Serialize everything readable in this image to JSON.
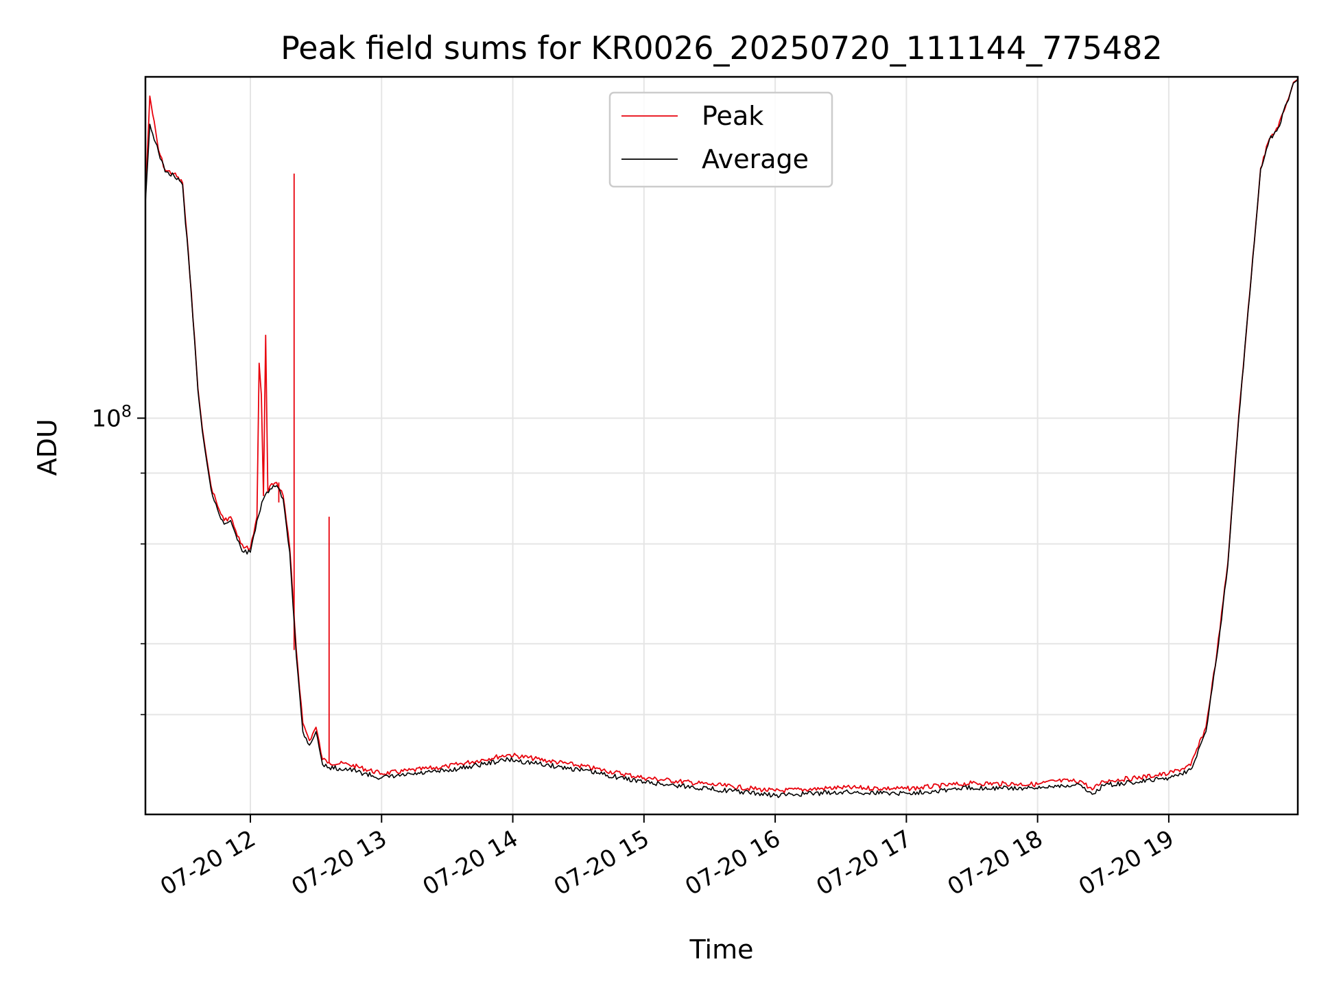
{
  "chart_data": {
    "type": "line",
    "title": "Peak field sums for KR0026_20250720_111144_775482",
    "xlabel": "Time",
    "ylabel": "ADU",
    "yscale": "log",
    "ylim": [
      20000000,
      400000000
    ],
    "xlim": [
      "2025-07-20 11:12",
      "2025-07-20 19:59"
    ],
    "x_tick_labels": [
      "07-20 12",
      "07-20 13",
      "07-20 14",
      "07-20 15",
      "07-20 16",
      "07-20 17",
      "07-20 18",
      "07-20 19"
    ],
    "x_ticks": [
      "2025-07-20 12:00",
      "2025-07-20 13:00",
      "2025-07-20 14:00",
      "2025-07-20 15:00",
      "2025-07-20 16:00",
      "2025-07-20 17:00",
      "2025-07-20 18:00",
      "2025-07-20 19:00"
    ],
    "y_tick_labels": [
      "10^8"
    ],
    "y_ticks": [
      100000000
    ],
    "y_minor_ticks": [
      30000000,
      40000000,
      60000000,
      80000000
    ],
    "grid": true,
    "legend_position": "top-center",
    "colors": {
      "peak": "#e8000b",
      "average": "#000000",
      "grid": "#e5e5e5"
    },
    "series": [
      {
        "name": "Average",
        "x": [
          "2025-07-20 11:12",
          "2025-07-20 11:14",
          "2025-07-20 11:18",
          "2025-07-20 11:21",
          "2025-07-20 11:25",
          "2025-07-20 11:29",
          "2025-07-20 11:33",
          "2025-07-20 11:36",
          "2025-07-20 11:38",
          "2025-07-20 11:40",
          "2025-07-20 11:42",
          "2025-07-20 11:45",
          "2025-07-20 11:48",
          "2025-07-20 11:51",
          "2025-07-20 11:54",
          "2025-07-20 11:57",
          "2025-07-20 12:00",
          "2025-07-20 12:03",
          "2025-07-20 12:06",
          "2025-07-20 12:09",
          "2025-07-20 12:12",
          "2025-07-20 12:15",
          "2025-07-20 12:18",
          "2025-07-20 12:21",
          "2025-07-20 12:24",
          "2025-07-20 12:27",
          "2025-07-20 12:30",
          "2025-07-20 12:33",
          "2025-07-20 12:36",
          "2025-07-20 12:45",
          "2025-07-20 13:00",
          "2025-07-20 13:30",
          "2025-07-20 13:58",
          "2025-07-20 14:30",
          "2025-07-20 15:00",
          "2025-07-20 15:30",
          "2025-07-20 16:00",
          "2025-07-20 16:30",
          "2025-07-20 17:00",
          "2025-07-20 17:30",
          "2025-07-20 18:00",
          "2025-07-20 18:08",
          "2025-07-20 18:20",
          "2025-07-20 18:25",
          "2025-07-20 18:30",
          "2025-07-20 18:45",
          "2025-07-20 19:00",
          "2025-07-20 19:10",
          "2025-07-20 19:17",
          "2025-07-20 19:22",
          "2025-07-20 19:27",
          "2025-07-20 19:32",
          "2025-07-20 19:37",
          "2025-07-20 19:42",
          "2025-07-20 19:46",
          "2025-07-20 19:50",
          "2025-07-20 19:54",
          "2025-07-20 19:57",
          "2025-07-20 19:59"
        ],
        "y": [
          240000000,
          330000000,
          295000000,
          272000000,
          268000000,
          258000000,
          165000000,
          112000000,
          95000000,
          84000000,
          75000000,
          69000000,
          65000000,
          66000000,
          61000000,
          58000000,
          58000000,
          66000000,
          72000000,
          75000000,
          76000000,
          72000000,
          58000000,
          38000000,
          28000000,
          26500000,
          28000000,
          24500000,
          24200000,
          24000000,
          23200000,
          23900000,
          25000000,
          24000000,
          22800000,
          22200000,
          21600000,
          21900000,
          21800000,
          22300000,
          22200000,
          22500000,
          22500000,
          21700000,
          22500000,
          22800000,
          23200000,
          24000000,
          28000000,
          38000000,
          55000000,
          100000000,
          165000000,
          275000000,
          310000000,
          325000000,
          360000000,
          390000000,
          395000000
        ]
      },
      {
        "name": "Peak",
        "x": [
          "2025-07-20 11:12",
          "2025-07-20 11:14",
          "2025-07-20 11:18",
          "2025-07-20 11:21",
          "2025-07-20 11:25",
          "2025-07-20 11:29",
          "2025-07-20 11:33",
          "2025-07-20 11:36",
          "2025-07-20 11:38",
          "2025-07-20 11:40",
          "2025-07-20 11:42",
          "2025-07-20 11:45",
          "2025-07-20 11:48",
          "2025-07-20 11:51",
          "2025-07-20 11:54",
          "2025-07-20 11:57",
          "2025-07-20 12:00",
          "2025-07-20 12:03",
          "2025-07-20 12:04",
          "2025-07-20 12:05",
          "2025-07-20 12:06",
          "2025-07-20 12:07",
          "2025-07-20 12:08",
          "2025-07-20 12:09",
          "2025-07-20 12:12",
          "2025-07-20 12:15",
          "2025-07-20 12:18",
          "2025-07-20 12:21",
          "2025-07-20 12:24",
          "2025-07-20 12:27",
          "2025-07-20 12:30",
          "2025-07-20 12:33",
          "2025-07-20 12:36",
          "2025-07-20 12:45",
          "2025-07-20 13:00",
          "2025-07-20 13:30",
          "2025-07-20 13:58",
          "2025-07-20 14:30",
          "2025-07-20 15:00",
          "2025-07-20 15:30",
          "2025-07-20 16:00",
          "2025-07-20 16:30",
          "2025-07-20 17:00",
          "2025-07-20 17:30",
          "2025-07-20 18:00",
          "2025-07-20 18:08",
          "2025-07-20 18:20",
          "2025-07-20 18:25",
          "2025-07-20 18:30",
          "2025-07-20 18:45",
          "2025-07-20 19:00",
          "2025-07-20 19:10",
          "2025-07-20 19:17",
          "2025-07-20 19:22",
          "2025-07-20 19:27",
          "2025-07-20 19:32",
          "2025-07-20 19:37",
          "2025-07-20 19:42",
          "2025-07-20 19:46",
          "2025-07-20 19:50",
          "2025-07-20 19:54",
          "2025-07-20 19:57",
          "2025-07-20 19:59"
        ],
        "y": [
          245000000,
          370000000,
          297000000,
          274000000,
          270000000,
          260000000,
          167000000,
          113000000,
          96000000,
          85000000,
          76000000,
          70000000,
          66000000,
          67000000,
          62000000,
          59000000,
          59000000,
          67000000,
          125000000,
          110000000,
          73000000,
          140000000,
          74000000,
          76000000,
          77000000,
          73000000,
          59000000,
          39000000,
          29000000,
          27000000,
          28500000,
          25000000,
          24700000,
          24500000,
          23600000,
          24300000,
          25500000,
          24400000,
          23200000,
          22600000,
          22000000,
          22300000,
          22200000,
          22700000,
          22600000,
          22900000,
          22900000,
          22100000,
          22900000,
          23200000,
          23600000,
          24400000,
          28500000,
          38500000,
          55500000,
          101000000,
          166000000,
          276000000,
          311000000,
          326000000,
          361000000,
          391000000,
          396000000
        ]
      }
    ],
    "spikes": [
      {
        "x": "2025-07-20 12:20",
        "y": 270000000
      },
      {
        "x": "2025-07-20 12:13",
        "y": 71000000
      },
      {
        "x": "2025-07-20 12:36",
        "y": 67000000
      }
    ]
  }
}
